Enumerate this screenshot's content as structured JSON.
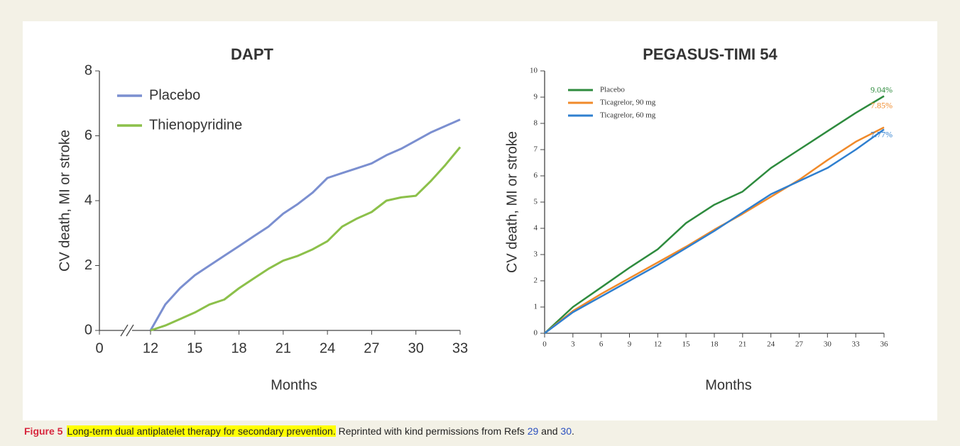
{
  "chart_data": [
    {
      "type": "line",
      "title": "DAPT",
      "y_label": "CV death, MI or stroke",
      "x_label": "Months",
      "x": [
        12,
        13,
        14,
        15,
        16,
        17,
        18,
        19,
        20,
        21,
        22,
        23,
        24,
        25,
        26,
        27,
        28,
        29,
        30,
        31,
        32,
        33
      ],
      "series": [
        {
          "name": "Placebo",
          "color": "#7b8fd0",
          "values": [
            0,
            0.8,
            1.3,
            1.7,
            2.0,
            2.3,
            2.6,
            2.9,
            3.2,
            3.6,
            3.9,
            4.25,
            4.7,
            4.85,
            5.0,
            5.15,
            5.4,
            5.6,
            5.85,
            6.1,
            6.3,
            6.5
          ]
        },
        {
          "name": "Thienopyridine",
          "color": "#8cc04a",
          "values": [
            0,
            0.15,
            0.35,
            0.55,
            0.8,
            0.95,
            1.3,
            1.6,
            1.9,
            2.15,
            2.3,
            2.5,
            2.75,
            3.2,
            3.45,
            3.65,
            4.0,
            4.1,
            4.15,
            4.6,
            5.1,
            5.65
          ]
        }
      ],
      "xlim": [
        0,
        33
      ],
      "xticks": [
        0,
        12,
        15,
        18,
        21,
        24,
        27,
        30,
        33
      ],
      "x_axis_break": true,
      "ylim": [
        0,
        8
      ],
      "yticks": [
        0,
        2,
        4,
        6,
        8
      ],
      "legend": "upper-left"
    },
    {
      "type": "line",
      "title": "PEGASUS-TIMI 54",
      "y_label": "CV death, MI or stroke",
      "x_label": "Months",
      "x": [
        0,
        3,
        6,
        9,
        12,
        15,
        18,
        21,
        24,
        27,
        30,
        33,
        36
      ],
      "series": [
        {
          "name": "Placebo",
          "color": "#2e8b3e",
          "values": [
            0,
            1.0,
            1.75,
            2.5,
            3.2,
            4.2,
            4.9,
            5.4,
            6.3,
            7.0,
            7.7,
            8.4,
            9.04
          ],
          "value_labels": [
            null,
            null,
            null,
            null,
            null,
            null,
            null,
            null,
            null,
            null,
            null,
            null,
            "9.04%"
          ]
        },
        {
          "name": "Ticagrelor, 90 mg",
          "color": "#f08a2a",
          "values": [
            0,
            0.85,
            1.5,
            2.1,
            2.7,
            3.3,
            3.95,
            4.55,
            5.2,
            5.85,
            6.6,
            7.3,
            7.85
          ],
          "value_labels": [
            null,
            null,
            null,
            null,
            null,
            null,
            null,
            null,
            null,
            null,
            null,
            null,
            "7.85%"
          ]
        },
        {
          "name": "Ticagrelor, 60 mg",
          "color": "#2f7fcf",
          "values": [
            0,
            0.8,
            1.4,
            2.0,
            2.6,
            3.25,
            3.9,
            4.6,
            5.3,
            5.8,
            6.3,
            7.0,
            7.77
          ],
          "value_labels": [
            null,
            null,
            null,
            null,
            null,
            null,
            null,
            null,
            null,
            null,
            null,
            null,
            "7.77%"
          ]
        }
      ],
      "xlim": [
        0,
        36
      ],
      "xticks": [
        0,
        3,
        6,
        9,
        12,
        15,
        18,
        21,
        24,
        27,
        30,
        33,
        36
      ],
      "ylim": [
        0,
        10
      ],
      "yticks": [
        0,
        1,
        2,
        3,
        4,
        5,
        6,
        7,
        8,
        9,
        10
      ],
      "legend": "upper-left"
    }
  ],
  "caption": {
    "label": "Figure 5",
    "title": "Long-term dual antiplatelet therapy for secondary prevention.",
    "text_parts": [
      "Reprinted with kind permissions from Refs",
      "29",
      "and",
      "30",
      "."
    ]
  }
}
